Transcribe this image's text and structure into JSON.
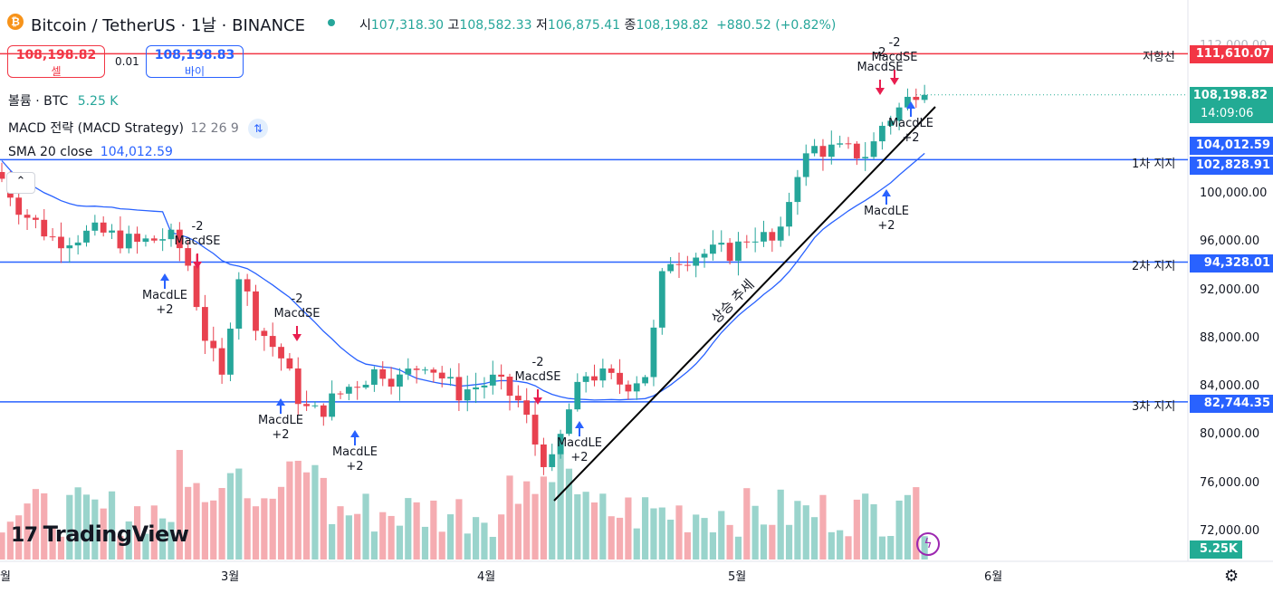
{
  "header": {
    "symbol_title": "Bitcoin / TetherUS · 1날 · BINANCE",
    "open_label": "시",
    "open_value": "107,318.30",
    "high_label": "고",
    "high_value": "108,582.33",
    "low_label": "저",
    "low_value": "106,875.41",
    "close_label": "종",
    "close_value": "108,198.82",
    "change": "+880.52 (+0.82%)"
  },
  "trade": {
    "sell_price": "108,198.82",
    "sell_label": "셀",
    "spread": "0.01",
    "buy_price": "108,198.83",
    "buy_label": "바이"
  },
  "legend": {
    "volume_label": "볼륨 · BTC",
    "volume_value": "5.25 K",
    "macd_label": "MACD 전략 (MACD Strategy)",
    "macd_params": "12 26 9",
    "sma_label": "SMA 20 close",
    "sma_value": "104,012.59"
  },
  "price_axis": {
    "ticks": [
      "100,000.00",
      "96,000.00",
      "92,000.00",
      "88,000.00",
      "84,000.00",
      "80,000.00",
      "76,000.00",
      "72,000.00"
    ],
    "top_partial_tick": "112,000.00",
    "tags": {
      "resistance": "111,610.07",
      "last_price": "108,198.82",
      "countdown": "14:09:06",
      "sma": "104,012.59",
      "support1": "102,828.91",
      "support2": "94,328.01",
      "support3": "82,744.35",
      "volume": "5.25K"
    }
  },
  "time_axis": {
    "labels": [
      "월",
      "3월",
      "4월",
      "5월",
      "6월"
    ]
  },
  "drawings": {
    "resistance_label": "저항선",
    "support1_label": "1차 지지",
    "support2_label": "2차 지지",
    "support3_label": "3차 지지",
    "trend_label": "상승 추세"
  },
  "signals": [
    {
      "text1": "MacdSE",
      "text2": "-2"
    },
    {
      "text1": "MacdLE",
      "text2": "+2"
    },
    {
      "text1": "MacdSE",
      "text2": "-2"
    },
    {
      "text1": "MacdLE",
      "text2": "+2"
    },
    {
      "text1": "MacdLE",
      "text2": "+2"
    },
    {
      "text1": "MacdSE",
      "text2": "-2"
    },
    {
      "text1": "MacdLE",
      "text2": "+2"
    },
    {
      "text1": "MacdLE",
      "text2": "+2"
    },
    {
      "text1": "MacdSE",
      "text2": "-2"
    },
    {
      "text1": "MacdSE",
      "text2": "-2"
    },
    {
      "text1": "MacdLE",
      "text2": "+2"
    }
  ],
  "branding": {
    "logo_text": "TradingView"
  },
  "colors": {
    "up": "#26a69a",
    "down": "#e8414f",
    "vol_up": "#8fcfc6",
    "vol_down": "#f4a3a8",
    "sma": "#2962ff",
    "support": "#2962ff",
    "resistance": "#f23645"
  },
  "icons": {
    "logo": "bitcoin-icon",
    "status": "market-open-dot-icon",
    "macd_settings": "strategy-arrows-icon",
    "collapse": "chevron-up-icon",
    "bolt": "lightning-icon",
    "settings": "gear-icon"
  }
}
